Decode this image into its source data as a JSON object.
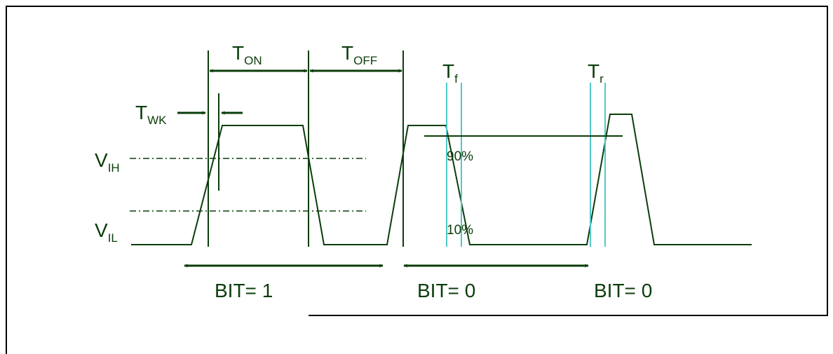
{
  "diagram": {
    "colors": {
      "signal": "#0b3d0b",
      "marker": "#4fc8c8",
      "frame": "#000000",
      "background": "#ffffff"
    },
    "labels": {
      "t_on": {
        "main": "T",
        "sub": "ON"
      },
      "t_off": {
        "main": "T",
        "sub": "OFF"
      },
      "t_wk": {
        "main": "T",
        "sub": "WK"
      },
      "t_f": {
        "main": "T",
        "sub": "f"
      },
      "t_r": {
        "main": "T",
        "sub": "r"
      },
      "v_ih": {
        "main": "V",
        "sub": "IH"
      },
      "v_il": {
        "main": "V",
        "sub": "IL"
      },
      "pct_90": "90%",
      "pct_10": "10%",
      "bit_1": "BIT= 1",
      "bit_0_first": "BIT= 0",
      "bit_0_second": "BIT= 0"
    }
  }
}
